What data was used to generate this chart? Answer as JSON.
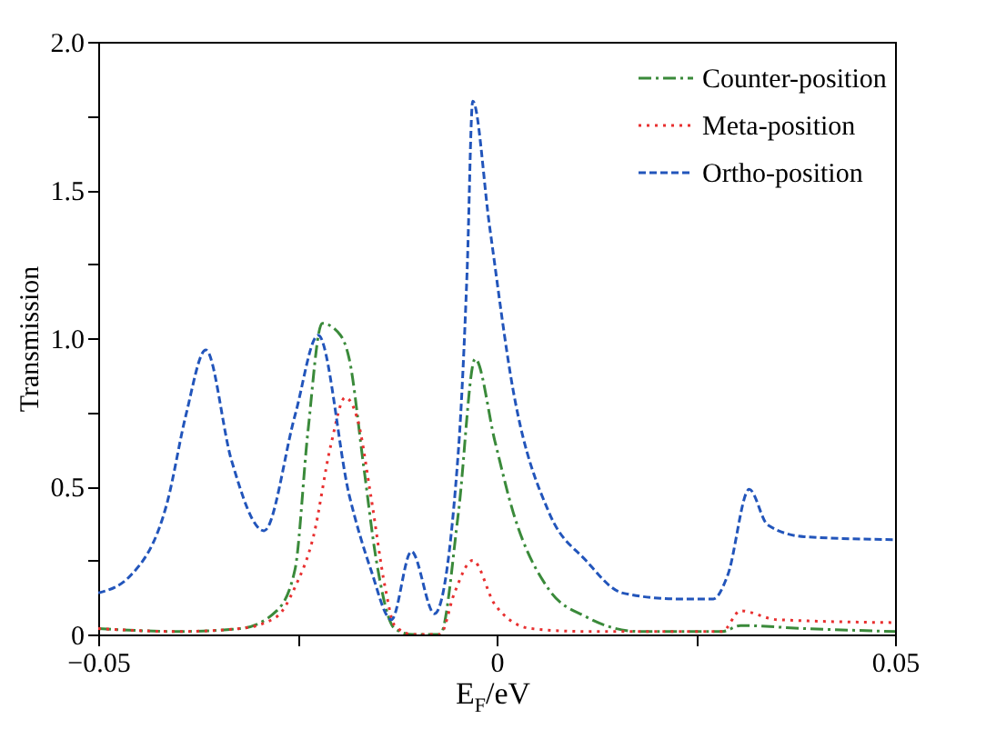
{
  "chart_data": {
    "type": "line",
    "xlabel": "E$_{F}$/eV",
    "ylabel": "Transmission",
    "xlim": [
      -0.05,
      0.05
    ],
    "xticks": [
      {
        "value": -0.05,
        "label": "−0.05"
      },
      {
        "value": -0.025,
        "label": null
      },
      0,
      {
        "value": 0.025,
        "label": null
      },
      0.05
    ],
    "ylim": [
      0,
      2
    ],
    "yticks": [
      0,
      {
        "value": 0.25,
        "label": null
      },
      0.5,
      {
        "value": 0.75,
        "label": null
      },
      {
        "value": 1,
        "label": "1.0"
      },
      {
        "value": 1.25,
        "label": null
      },
      1.5,
      {
        "value": 1.75,
        "label": null
      },
      {
        "value": 2,
        "label": "2.0"
      }
    ],
    "legend": "top right",
    "grid": false,
    "series": [
      {
        "name": "Counter-position",
        "color": "#3a8a3a",
        "line_style": "dashdot",
        "x": [
          -0.05,
          -0.04,
          -0.0322,
          -0.0276,
          -0.0253,
          -0.0237,
          -0.0219,
          -0.0196,
          -0.0185,
          -0.0167,
          -0.0151,
          -0.0128,
          -0.0105,
          -0.0071,
          -0.0048,
          -0.0027,
          -0.0002,
          0.0021,
          0.0066,
          0.0112,
          0.018,
          0.0283,
          0.0306,
          0.0386,
          0.05
        ],
        "values": [
          0.02,
          0.01,
          0.02,
          0.08,
          0.22,
          0.68,
          1.05,
          1.01,
          0.93,
          0.57,
          0.25,
          0.02,
          0,
          0,
          0.41,
          0.93,
          0.65,
          0.41,
          0.15,
          0.06,
          0.01,
          0.01,
          0.03,
          0.02,
          0.01
        ]
      },
      {
        "name": "Meta-position",
        "color": "#e83030",
        "line_style": "dotted",
        "x": [
          -0.05,
          -0.04,
          -0.0322,
          -0.0276,
          -0.0253,
          -0.023,
          -0.0208,
          -0.019,
          -0.0174,
          -0.0158,
          -0.014,
          -0.0128,
          -0.0105,
          -0.0071,
          -0.0053,
          -0.003,
          -0.0002,
          0.0043,
          0.0112,
          0.0283,
          0.0306,
          0.0352,
          0.05
        ],
        "values": [
          0.02,
          0.01,
          0.02,
          0.06,
          0.16,
          0.33,
          0.64,
          0.8,
          0.72,
          0.47,
          0.16,
          0.03,
          0,
          0,
          0.14,
          0.25,
          0.1,
          0.02,
          0.01,
          0.01,
          0.08,
          0.05,
          0.04
        ]
      },
      {
        "name": "Ortho-position",
        "color": "#2255bb",
        "line_style": "dashed",
        "x": [
          -0.05,
          -0.0459,
          -0.0413,
          -0.039,
          -0.0365,
          -0.0333,
          -0.0292,
          -0.0253,
          -0.0224,
          -0.0185,
          -0.0158,
          -0.0132,
          -0.0107,
          -0.0078,
          -0.0048,
          -0.0037,
          -0.003,
          -0.0009,
          0.0021,
          0.0066,
          0.0112,
          0.0158,
          0.0226,
          0.0272,
          0.029,
          0.0317,
          0.034,
          0.0386,
          0.05
        ],
        "values": [
          0.14,
          0.2,
          0.45,
          0.74,
          0.96,
          0.59,
          0.35,
          0.74,
          1.01,
          0.47,
          0.22,
          0.05,
          0.28,
          0.07,
          0.62,
          1.23,
          1.8,
          1.38,
          0.82,
          0.41,
          0.25,
          0.14,
          0.12,
          0.12,
          0.2,
          0.49,
          0.37,
          0.33,
          0.32
        ]
      }
    ]
  }
}
